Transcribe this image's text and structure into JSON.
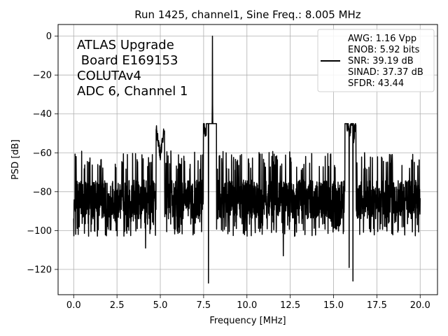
{
  "chart_data": {
    "type": "line",
    "title": "Run 1425, channel1, Sine Freq.: 8.005 MHz",
    "xlabel": "Frequency [MHz]",
    "ylabel": "PSD [dB]",
    "xlim": [
      -0.9,
      21.0
    ],
    "ylim": [
      -133,
      6
    ],
    "xticks": [
      0.0,
      2.5,
      5.0,
      7.5,
      10.0,
      12.5,
      15.0,
      17.5,
      20.0
    ],
    "xtick_labels": [
      "0.0",
      "2.5",
      "5.0",
      "7.5",
      "10.0",
      "12.5",
      "15.0",
      "17.5",
      "20.0"
    ],
    "yticks": [
      0,
      -20,
      -40,
      -60,
      -80,
      -100,
      -120
    ],
    "ytick_labels": [
      "0",
      "−20",
      "−40",
      "−60",
      "−80",
      "−100",
      "−120"
    ],
    "grid": true,
    "line_color": "#000000",
    "annotation": [
      "ATLAS Upgrade",
      " Board E169153",
      "COLUTAv4",
      "ADC 6, Channel 1"
    ],
    "legend": {
      "placement": "top-right",
      "lines": [
        "AWG: 1.16 Vpp",
        "ENOB: 5.92 bits",
        "SNR: 39.19 dB",
        "SINAD: 37.37 dB",
        "SFDR: 43.44"
      ]
    },
    "series": [
      {
        "features": {
          "x_start": 0.0,
          "x_end": 20.0,
          "noise_floor_mean": -84,
          "noise_top": -64,
          "noise_bottom": -103,
          "fundamental": {
            "x": 8.005,
            "y": 0
          },
          "spikes_down": [
            {
              "x": 7.78,
              "y": -127
            },
            {
              "x": 16.12,
              "y": -126
            },
            {
              "x": 15.9,
              "y": -119
            },
            {
              "x": 12.1,
              "y": -113
            },
            {
              "x": 4.15,
              "y": -109
            }
          ],
          "bumps_up": [
            {
              "x": 8.0,
              "y": -43
            },
            {
              "x": 7.9,
              "y": -52
            },
            {
              "x": 7.73,
              "y": -57
            },
            {
              "x": 15.9,
              "y": -52
            },
            {
              "x": 16.05,
              "y": -58
            },
            {
              "x": 5.0,
              "y": -61
            }
          ]
        }
      }
    ]
  }
}
